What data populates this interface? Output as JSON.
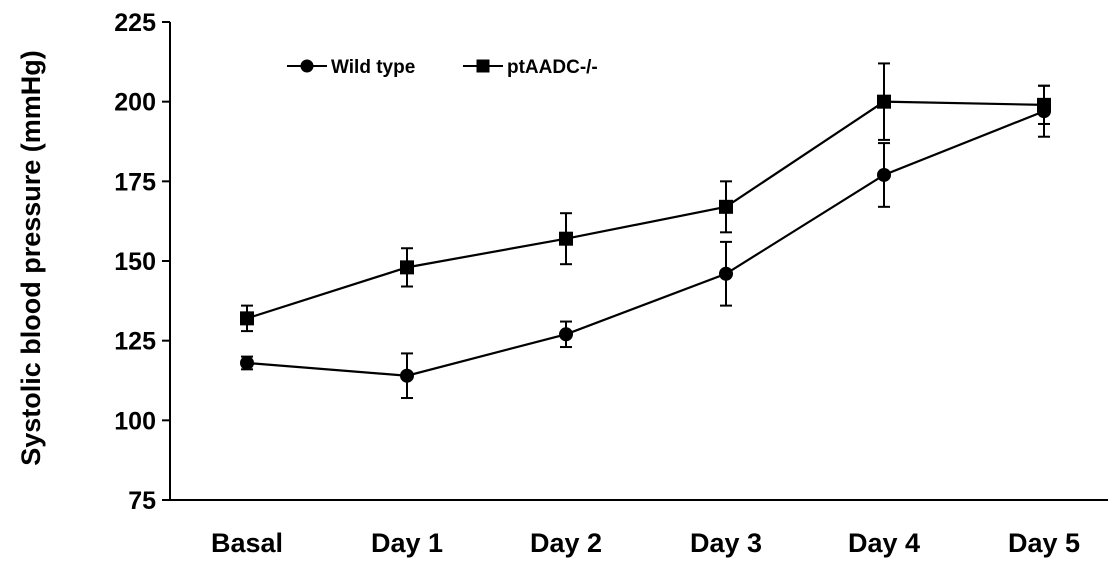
{
  "chart_data": {
    "type": "line",
    "ylabel": "Systolic blood pressure  (mmHg)",
    "xlabel": "",
    "ylim": [
      75,
      225
    ],
    "yticks": [
      75,
      100,
      125,
      150,
      175,
      200,
      225
    ],
    "categories": [
      "Basal",
      "Day 1",
      "Day 2",
      "Day 3",
      "Day 4",
      "Day 5"
    ],
    "series": [
      {
        "name": "Wild type",
        "marker": "circle",
        "values": [
          118,
          114,
          127,
          146,
          177,
          197
        ],
        "error": [
          2,
          7,
          4,
          10,
          10,
          8
        ]
      },
      {
        "name": "ptAADC-/-",
        "marker": "square",
        "values": [
          132,
          148,
          157,
          167,
          200,
          199
        ],
        "error": [
          4,
          6,
          8,
          8,
          12,
          6
        ]
      }
    ],
    "legend_position": "top-left",
    "grid": false,
    "color": "#000000"
  }
}
